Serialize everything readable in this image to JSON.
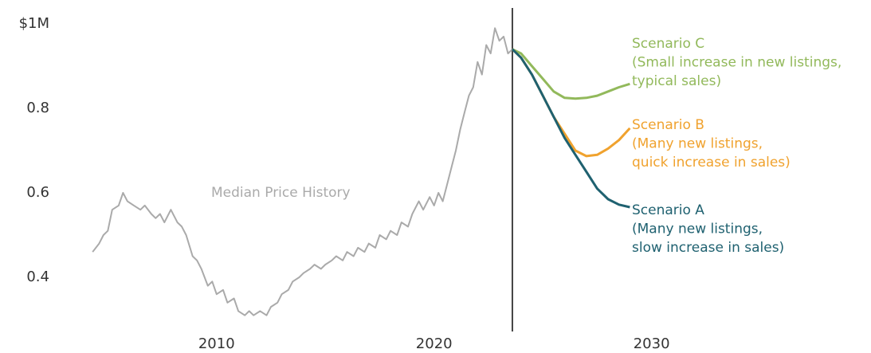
{
  "chart_data": {
    "type": "line",
    "xlim": [
      2004,
      2038
    ],
    "ylim": [
      0.28,
      1.0
    ],
    "xticks": [
      2010,
      2020,
      2030
    ],
    "yticks": [
      0.4,
      0.6,
      0.8,
      {
        "value": 1,
        "label": "$1M"
      }
    ],
    "grid": false,
    "vline_x": 2023.6,
    "series": [
      {
        "name": "Median Price History",
        "color": "#aaaaaa",
        "x": [
          2004.3,
          2004.6,
          2004.8,
          2005.0,
          2005.2,
          2005.5,
          2005.7,
          2005.9,
          2006.2,
          2006.5,
          2006.7,
          2007.0,
          2007.2,
          2007.4,
          2007.6,
          2007.9,
          2008.2,
          2008.4,
          2008.6,
          2008.9,
          2009.1,
          2009.3,
          2009.6,
          2009.8,
          2010.0,
          2010.3,
          2010.5,
          2010.8,
          2011.0,
          2011.3,
          2011.5,
          2011.7,
          2012.0,
          2012.3,
          2012.5,
          2012.8,
          2013.0,
          2013.3,
          2013.5,
          2013.8,
          2014.0,
          2014.3,
          2014.5,
          2014.8,
          2015.0,
          2015.3,
          2015.5,
          2015.8,
          2016.0,
          2016.3,
          2016.5,
          2016.8,
          2017.0,
          2017.3,
          2017.5,
          2017.8,
          2018.0,
          2018.3,
          2018.5,
          2018.8,
          2019.0,
          2019.3,
          2019.5,
          2019.8,
          2020.0,
          2020.2,
          2020.4,
          2020.6,
          2020.8,
          2021.0,
          2021.2,
          2021.4,
          2021.6,
          2021.8,
          2022.0,
          2022.2,
          2022.4,
          2022.6,
          2022.8,
          2023.0,
          2023.2,
          2023.4,
          2023.6
        ],
        "values": [
          0.46,
          0.48,
          0.5,
          0.51,
          0.56,
          0.57,
          0.6,
          0.58,
          0.57,
          0.56,
          0.57,
          0.55,
          0.54,
          0.55,
          0.53,
          0.56,
          0.53,
          0.52,
          0.5,
          0.45,
          0.44,
          0.42,
          0.38,
          0.39,
          0.36,
          0.37,
          0.34,
          0.35,
          0.32,
          0.31,
          0.32,
          0.31,
          0.32,
          0.31,
          0.33,
          0.34,
          0.36,
          0.37,
          0.39,
          0.4,
          0.41,
          0.42,
          0.43,
          0.42,
          0.43,
          0.44,
          0.45,
          0.44,
          0.46,
          0.45,
          0.47,
          0.46,
          0.48,
          0.47,
          0.5,
          0.49,
          0.51,
          0.5,
          0.53,
          0.52,
          0.55,
          0.58,
          0.56,
          0.59,
          0.57,
          0.6,
          0.58,
          0.62,
          0.66,
          0.7,
          0.75,
          0.79,
          0.83,
          0.85,
          0.91,
          0.88,
          0.95,
          0.93,
          0.99,
          0.96,
          0.97,
          0.93,
          0.94
        ]
      },
      {
        "name": "Scenario C",
        "color": "#92b95b",
        "description": [
          "(Small increase in new listings,",
          "typical sales)"
        ],
        "x": [
          2023.6,
          2024.0,
          2024.5,
          2025.0,
          2025.5,
          2026.0,
          2026.5,
          2027.0,
          2027.5,
          2028.0,
          2028.5,
          2029.0
        ],
        "values": [
          0.94,
          0.93,
          0.9,
          0.87,
          0.84,
          0.825,
          0.823,
          0.825,
          0.83,
          0.84,
          0.85,
          0.858
        ]
      },
      {
        "name": "Scenario B",
        "color": "#f0a22e",
        "description": [
          "(Many new listings,",
          "quick increase in sales)"
        ],
        "x": [
          2023.6,
          2024.0,
          2024.5,
          2025.0,
          2025.5,
          2026.0,
          2026.5,
          2027.0,
          2027.5,
          2028.0,
          2028.5,
          2029.0
        ],
        "values": [
          0.94,
          0.92,
          0.88,
          0.83,
          0.78,
          0.74,
          0.7,
          0.687,
          0.69,
          0.705,
          0.725,
          0.753
        ]
      },
      {
        "name": "Scenario A",
        "color": "#1f6170",
        "description": [
          "(Many new listings,",
          "slow increase in sales)"
        ],
        "x": [
          2023.6,
          2024.0,
          2024.5,
          2025.0,
          2025.5,
          2026.0,
          2026.5,
          2027.0,
          2027.5,
          2028.0,
          2028.5,
          2029.0
        ],
        "values": [
          0.94,
          0.92,
          0.88,
          0.83,
          0.78,
          0.73,
          0.69,
          0.65,
          0.61,
          0.585,
          0.572,
          0.566
        ]
      }
    ]
  }
}
